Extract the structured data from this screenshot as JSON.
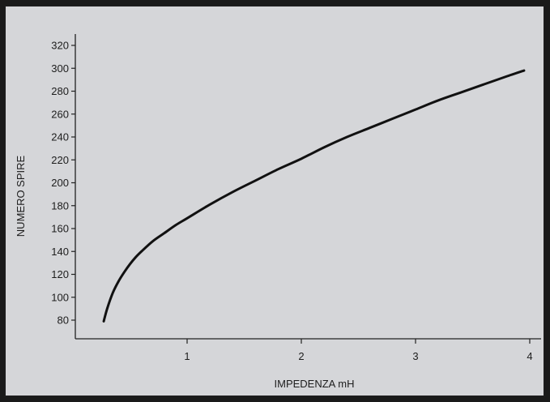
{
  "chart_data": {
    "type": "line",
    "title": "",
    "xlabel": "IMPEDENZA mH",
    "ylabel": "NUMERO SPIRE",
    "xlim": [
      0,
      4
    ],
    "ylim": [
      70,
      330
    ],
    "x_ticks": [
      1,
      2,
      3,
      4
    ],
    "y_ticks": [
      80,
      100,
      120,
      140,
      160,
      180,
      200,
      220,
      240,
      260,
      280,
      300,
      320
    ],
    "grid": false,
    "legend": "none",
    "series": [
      {
        "x": [
          0.27,
          0.3,
          0.35,
          0.4,
          0.45,
          0.5,
          0.55,
          0.6,
          0.7,
          0.8,
          0.9,
          1.0,
          1.2,
          1.4,
          1.6,
          1.8,
          2.0,
          2.2,
          2.4,
          2.6,
          2.8,
          3.0,
          3.2,
          3.4,
          3.6,
          3.8,
          3.95
        ],
        "y": [
          79,
          90,
          104,
          114,
          122,
          129,
          135,
          140,
          149,
          156,
          163,
          169,
          181,
          192,
          202,
          212,
          221,
          231,
          240,
          248,
          256,
          264,
          272,
          279,
          286,
          293,
          298
        ]
      }
    ],
    "colors": {
      "line": "#111111",
      "axis": "#222222",
      "background": "#d5d6d9",
      "frame": "#1c1c1c"
    }
  }
}
